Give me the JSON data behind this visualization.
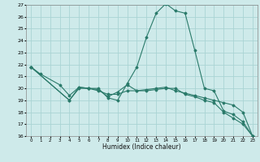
{
  "xlabel": "Humidex (Indice chaleur)",
  "bg_color": "#ceeaea",
  "grid_color": "#aad4d4",
  "line_color": "#2a7a6a",
  "xlim": [
    -0.5,
    23.5
  ],
  "ylim": [
    16,
    27
  ],
  "yticks": [
    16,
    17,
    18,
    19,
    20,
    21,
    22,
    23,
    24,
    25,
    26,
    27
  ],
  "xticks": [
    0,
    1,
    2,
    3,
    4,
    5,
    6,
    7,
    8,
    9,
    10,
    11,
    12,
    13,
    14,
    15,
    16,
    17,
    18,
    19,
    20,
    21,
    22,
    23
  ],
  "series": [
    {
      "x": [
        0,
        1,
        3,
        4,
        5,
        6,
        7,
        8,
        9,
        10,
        11,
        12,
        13,
        14,
        15,
        16,
        17,
        18,
        19,
        20,
        21,
        22,
        23
      ],
      "y": [
        21.8,
        21.2,
        20.3,
        19.4,
        20.1,
        20.0,
        20.0,
        19.2,
        19.0,
        20.4,
        21.8,
        24.3,
        26.3,
        27.1,
        26.5,
        26.3,
        23.2,
        20.0,
        19.8,
        18.1,
        17.8,
        17.2,
        16.0
      ]
    },
    {
      "x": [
        0,
        4,
        5,
        6,
        7,
        8,
        9,
        10,
        11,
        12,
        13,
        14,
        15,
        16,
        17,
        18,
        19,
        20,
        21,
        22,
        23
      ],
      "y": [
        21.8,
        19.0,
        20.0,
        20.0,
        19.8,
        19.5,
        19.5,
        19.8,
        19.8,
        19.9,
        20.0,
        20.1,
        19.8,
        19.6,
        19.4,
        19.2,
        19.0,
        18.8,
        18.6,
        18.0,
        16.0
      ]
    },
    {
      "x": [
        0,
        4,
        5,
        6,
        7,
        8,
        9,
        10,
        11,
        12,
        13,
        14,
        15,
        16,
        17,
        18,
        19,
        20,
        21,
        22,
        23
      ],
      "y": [
        21.8,
        19.0,
        20.1,
        20.0,
        19.9,
        19.3,
        19.7,
        20.3,
        19.8,
        19.8,
        19.9,
        20.0,
        20.0,
        19.5,
        19.3,
        19.0,
        18.8,
        18.0,
        17.5,
        17.0,
        16.0
      ]
    }
  ]
}
